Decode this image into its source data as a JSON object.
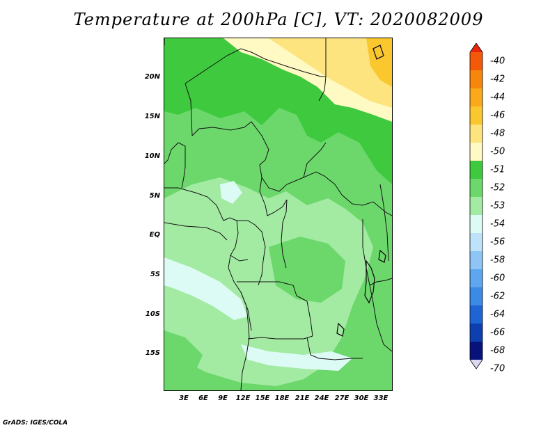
{
  "title": "Temperature at 200hPa [C], VT: 2020082009",
  "credit": "GrADS: IGES/COLA",
  "lat_labels": [
    "20N",
    "15N",
    "10N",
    "5N",
    "EQ",
    "5S",
    "10S",
    "15S"
  ],
  "lon_labels": [
    "3E",
    "6E",
    "9E",
    "12E",
    "15E",
    "18E",
    "21E",
    "24E",
    "27E",
    "30E",
    "33E"
  ],
  "colorbar": {
    "labels": [
      "-40",
      "-42",
      "-44",
      "-46",
      "-48",
      "-50",
      "-51",
      "-52",
      "-53",
      "-54",
      "-56",
      "-58",
      "-60",
      "-62",
      "-64",
      "-66",
      "-68",
      "-70"
    ],
    "colors": [
      "#e8260c",
      "#f25a0a",
      "#f7860c",
      "#f9a91a",
      "#fbc72f",
      "#fde47f",
      "#fff9c4",
      "#3ec93e",
      "#6cd86c",
      "#a3eaa3",
      "#ddfbf5",
      "#bfe2fb",
      "#8ec5f5",
      "#5ea6ef",
      "#3a8ae6",
      "#1f64d4",
      "#0d3fb0",
      "#07127a",
      "#dcd8f4"
    ]
  },
  "map_colors": {
    "c52": "#3ec93e",
    "c53": "#6cd86c",
    "c54": "#a3eaa3",
    "c56": "#ddfbf5",
    "c50": "#fde47f",
    "c51": "#fff9c4",
    "c48": "#fbc72f"
  }
}
